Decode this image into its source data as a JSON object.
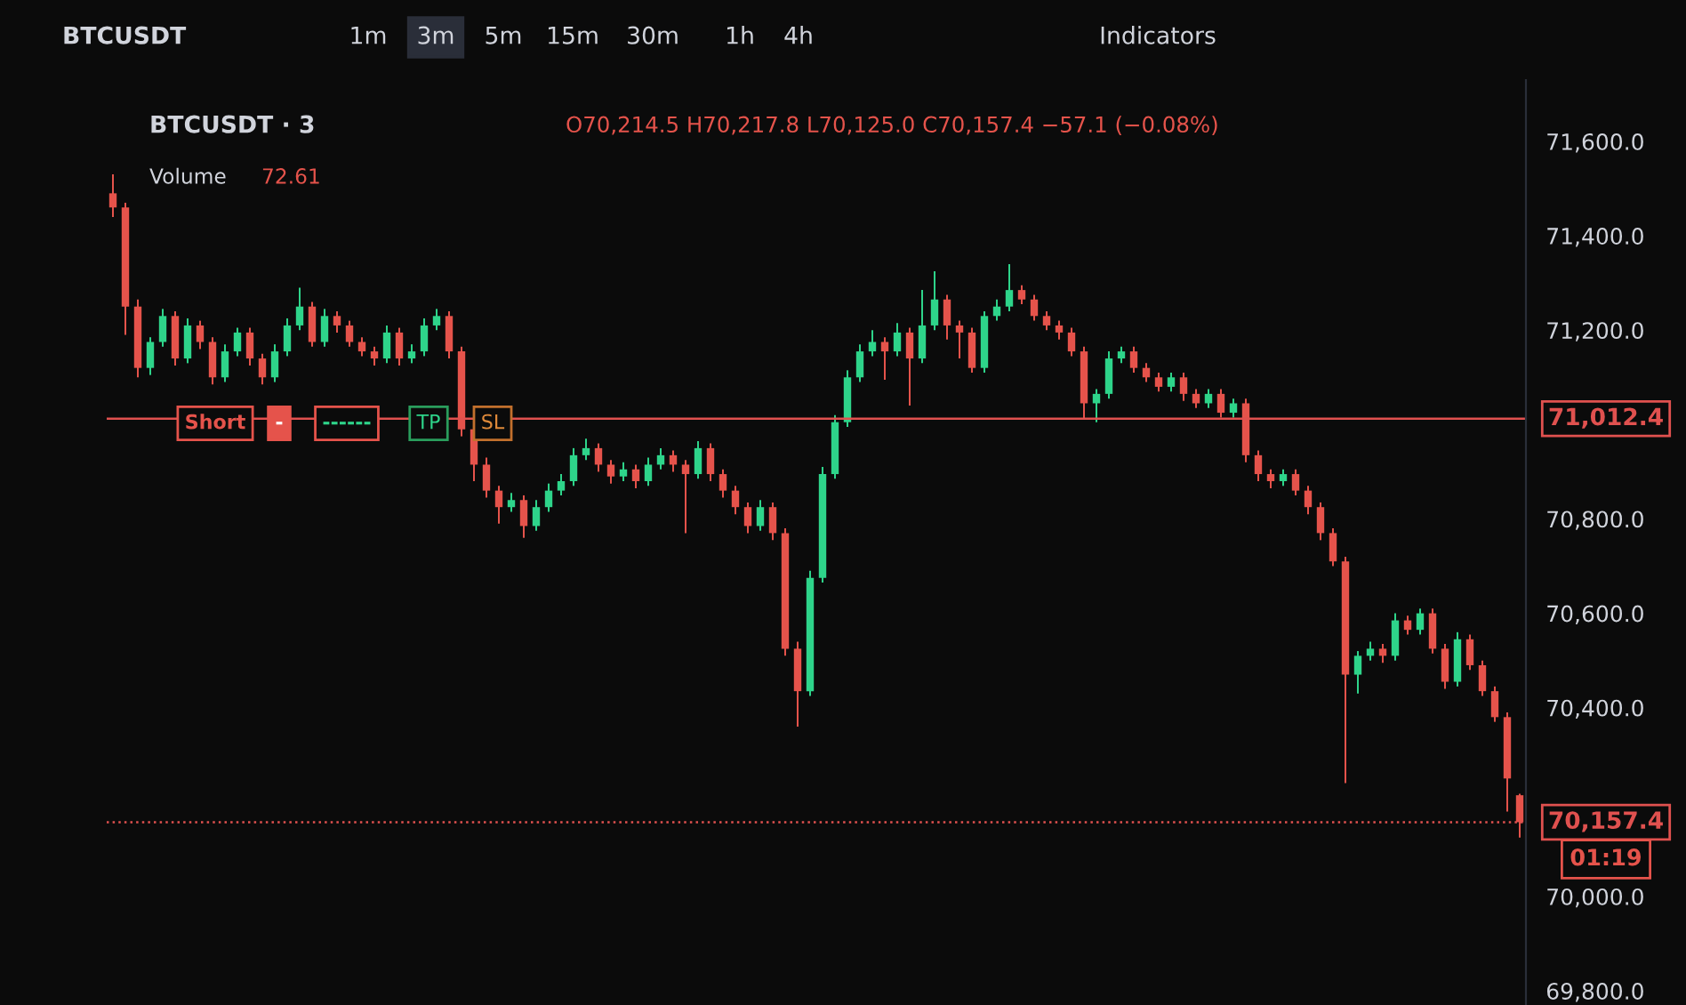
{
  "chart_data": {
    "type": "candlestick",
    "categories": [
      null,
      null,
      null,
      null,
      null,
      null,
      null,
      null,
      null,
      null,
      null,
      null,
      null,
      null,
      null,
      null,
      null,
      null,
      null,
      null,
      null,
      null,
      null,
      null,
      null,
      null,
      null,
      null,
      null,
      null,
      null,
      null,
      null,
      null,
      null,
      null,
      null,
      null,
      null,
      null,
      null,
      null,
      null,
      null,
      null,
      null,
      null,
      null,
      null,
      null,
      null,
      null,
      null,
      null,
      null,
      null,
      null,
      null,
      null,
      null,
      null,
      null,
      null,
      null,
      null,
      null,
      null,
      null,
      null,
      null,
      null,
      null,
      null,
      null,
      null,
      null,
      null,
      null,
      null,
      null,
      null,
      null,
      null,
      null,
      null,
      null,
      null,
      null,
      null,
      null,
      null,
      null,
      null,
      null,
      null,
      null,
      null,
      null,
      null,
      null,
      null,
      null,
      null,
      null,
      null,
      null,
      null,
      null,
      null,
      null,
      null,
      null,
      null,
      null
    ],
    "ohlc": [
      [
        71490,
        71530,
        71440,
        71460
      ],
      [
        71460,
        71470,
        71190,
        71250
      ],
      [
        71250,
        71265,
        71100,
        71120
      ],
      [
        71120,
        71185,
        71105,
        71175
      ],
      [
        71175,
        71245,
        71165,
        71230
      ],
      [
        71230,
        71240,
        71125,
        71140
      ],
      [
        71140,
        71225,
        71130,
        71210
      ],
      [
        71210,
        71220,
        71160,
        71175
      ],
      [
        71175,
        71185,
        71085,
        71100
      ],
      [
        71100,
        71170,
        71090,
        71155
      ],
      [
        71155,
        71205,
        71145,
        71195
      ],
      [
        71195,
        71205,
        71125,
        71140
      ],
      [
        71140,
        71150,
        71085,
        71100
      ],
      [
        71100,
        71170,
        71090,
        71155
      ],
      [
        71155,
        71225,
        71145,
        71210
      ],
      [
        71210,
        71290,
        71200,
        71250
      ],
      [
        71250,
        71260,
        71165,
        71175
      ],
      [
        71175,
        71245,
        71165,
        71230
      ],
      [
        71230,
        71240,
        71195,
        71210
      ],
      [
        71210,
        71220,
        71165,
        71175
      ],
      [
        71175,
        71185,
        71145,
        71155
      ],
      [
        71155,
        71165,
        71125,
        71140
      ],
      [
        71140,
        71210,
        71130,
        71195
      ],
      [
        71195,
        71205,
        71125,
        71140
      ],
      [
        71140,
        71170,
        71130,
        71155
      ],
      [
        71155,
        71225,
        71145,
        71210
      ],
      [
        71210,
        71245,
        71200,
        71230
      ],
      [
        71230,
        71240,
        71140,
        71155
      ],
      [
        71155,
        71165,
        70975,
        70990
      ],
      [
        70990,
        71000,
        70880,
        70915
      ],
      [
        70915,
        70930,
        70845,
        70860
      ],
      [
        70860,
        70870,
        70790,
        70825
      ],
      [
        70825,
        70855,
        70815,
        70840
      ],
      [
        70840,
        70850,
        70760,
        70785
      ],
      [
        70785,
        70840,
        70775,
        70825
      ],
      [
        70825,
        70875,
        70815,
        70860
      ],
      [
        70860,
        70895,
        70850,
        70880
      ],
      [
        70880,
        70950,
        70870,
        70935
      ],
      [
        70935,
        70970,
        70925,
        70950
      ],
      [
        70950,
        70960,
        70900,
        70915
      ],
      [
        70915,
        70925,
        70875,
        70890
      ],
      [
        70890,
        70920,
        70880,
        70905
      ],
      [
        70905,
        70915,
        70865,
        70880
      ],
      [
        70880,
        70930,
        70870,
        70915
      ],
      [
        70915,
        70950,
        70905,
        70935
      ],
      [
        70935,
        70945,
        70900,
        70915
      ],
      [
        70915,
        70925,
        70770,
        70895
      ],
      [
        70895,
        70965,
        70885,
        70950
      ],
      [
        70950,
        70960,
        70880,
        70895
      ],
      [
        70895,
        70905,
        70845,
        70860
      ],
      [
        70860,
        70870,
        70810,
        70825
      ],
      [
        70825,
        70835,
        70770,
        70785
      ],
      [
        70785,
        70840,
        70775,
        70825
      ],
      [
        70825,
        70835,
        70755,
        70770
      ],
      [
        70770,
        70780,
        70510,
        70525
      ],
      [
        70525,
        70540,
        70360,
        70435
      ],
      [
        70435,
        70690,
        70425,
        70675
      ],
      [
        70675,
        70910,
        70665,
        70895
      ],
      [
        70895,
        71020,
        70885,
        71005
      ],
      [
        71005,
        71115,
        70995,
        71100
      ],
      [
        71100,
        71170,
        71090,
        71155
      ],
      [
        71155,
        71200,
        71145,
        71175
      ],
      [
        71175,
        71185,
        71095,
        71155
      ],
      [
        71155,
        71215,
        71145,
        71195
      ],
      [
        71195,
        71205,
        71040,
        71140
      ],
      [
        71140,
        71285,
        71130,
        71210
      ],
      [
        71210,
        71325,
        71200,
        71265
      ],
      [
        71265,
        71275,
        71180,
        71210
      ],
      [
        71210,
        71220,
        71140,
        71195
      ],
      [
        71195,
        71205,
        71110,
        71120
      ],
      [
        71120,
        71240,
        71110,
        71230
      ],
      [
        71230,
        71265,
        71220,
        71250
      ],
      [
        71250,
        71340,
        71240,
        71285
      ],
      [
        71285,
        71295,
        71255,
        71265
      ],
      [
        71265,
        71275,
        71220,
        71230
      ],
      [
        71230,
        71240,
        71200,
        71210
      ],
      [
        71210,
        71220,
        71180,
        71195
      ],
      [
        71195,
        71205,
        71145,
        71155
      ],
      [
        71155,
        71165,
        71010,
        71045
      ],
      [
        71045,
        71075,
        71005,
        71065
      ],
      [
        71065,
        71155,
        71055,
        71140
      ],
      [
        71140,
        71165,
        71130,
        71155
      ],
      [
        71155,
        71165,
        71110,
        71120
      ],
      [
        71120,
        71130,
        71090,
        71100
      ],
      [
        71100,
        71110,
        71070,
        71080
      ],
      [
        71080,
        71110,
        71070,
        71100
      ],
      [
        71100,
        71110,
        71050,
        71065
      ],
      [
        71065,
        71075,
        71035,
        71045
      ],
      [
        71045,
        71075,
        71035,
        71065
      ],
      [
        71065,
        71075,
        71015,
        71025
      ],
      [
        71025,
        71055,
        71015,
        71045
      ],
      [
        71045,
        71055,
        70920,
        70935
      ],
      [
        70935,
        70945,
        70880,
        70895
      ],
      [
        70895,
        70905,
        70865,
        70880
      ],
      [
        70880,
        70905,
        70870,
        70895
      ],
      [
        70895,
        70905,
        70850,
        70860
      ],
      [
        70860,
        70870,
        70810,
        70825
      ],
      [
        70825,
        70835,
        70755,
        70770
      ],
      [
        70770,
        70780,
        70700,
        70710
      ],
      [
        70710,
        70720,
        70240,
        70470
      ],
      [
        70470,
        70520,
        70430,
        70510
      ],
      [
        70510,
        70540,
        70500,
        70525
      ],
      [
        70525,
        70535,
        70495,
        70510
      ],
      [
        70510,
        70600,
        70500,
        70585
      ],
      [
        70585,
        70595,
        70555,
        70565
      ],
      [
        70565,
        70610,
        70555,
        70600
      ],
      [
        70600,
        70610,
        70515,
        70525
      ],
      [
        70525,
        70535,
        70440,
        70455
      ],
      [
        70455,
        70560,
        70445,
        70545
      ],
      [
        70545,
        70555,
        70480,
        70490
      ],
      [
        70490,
        70500,
        70425,
        70435
      ],
      [
        70435,
        70445,
        70370,
        70380
      ],
      [
        70380,
        70390,
        70180,
        70250
      ],
      [
        70214.5,
        70217.8,
        70125.0,
        70157.4
      ]
    ],
    "ylim": [
      69770,
      71730
    ],
    "yticks": [
      {
        "value": 69800,
        "label": "69,800.0"
      },
      {
        "value": 70000,
        "label": "70,000.0"
      },
      {
        "value": 70400,
        "label": "70,400.0"
      },
      {
        "value": 70600,
        "label": "70,600.0"
      },
      {
        "value": 70800,
        "label": "70,800.0"
      },
      {
        "value": 71200,
        "label": "71,200.0"
      },
      {
        "value": 71400,
        "label": "71,400.0"
      },
      {
        "value": 71600,
        "label": "71,600.0"
      }
    ],
    "tick_labels": "y",
    "ref_lines": [
      {
        "axis": "y",
        "value": 71012.4,
        "label": "71,012.4",
        "color": "#e0514f",
        "line_style": "solid"
      },
      {
        "axis": "y",
        "value": 70157.4,
        "label": "70,157.4",
        "color": "#e0514f",
        "line_style": "dotted"
      }
    ],
    "annotations": [
      "BTCUSDT",
      "1m",
      "3m",
      "5m",
      "15m",
      "30m",
      "1h",
      "4h",
      "Indicators",
      "BTCUSDT · 3",
      "O70,214.5 H70,217.8 L70,125.0 C70,157.4 −57.1 (−0.08%)",
      "Volume",
      "72.61",
      "Short",
      "-",
      "------",
      "TP",
      "SL",
      "01:19"
    ]
  }
}
